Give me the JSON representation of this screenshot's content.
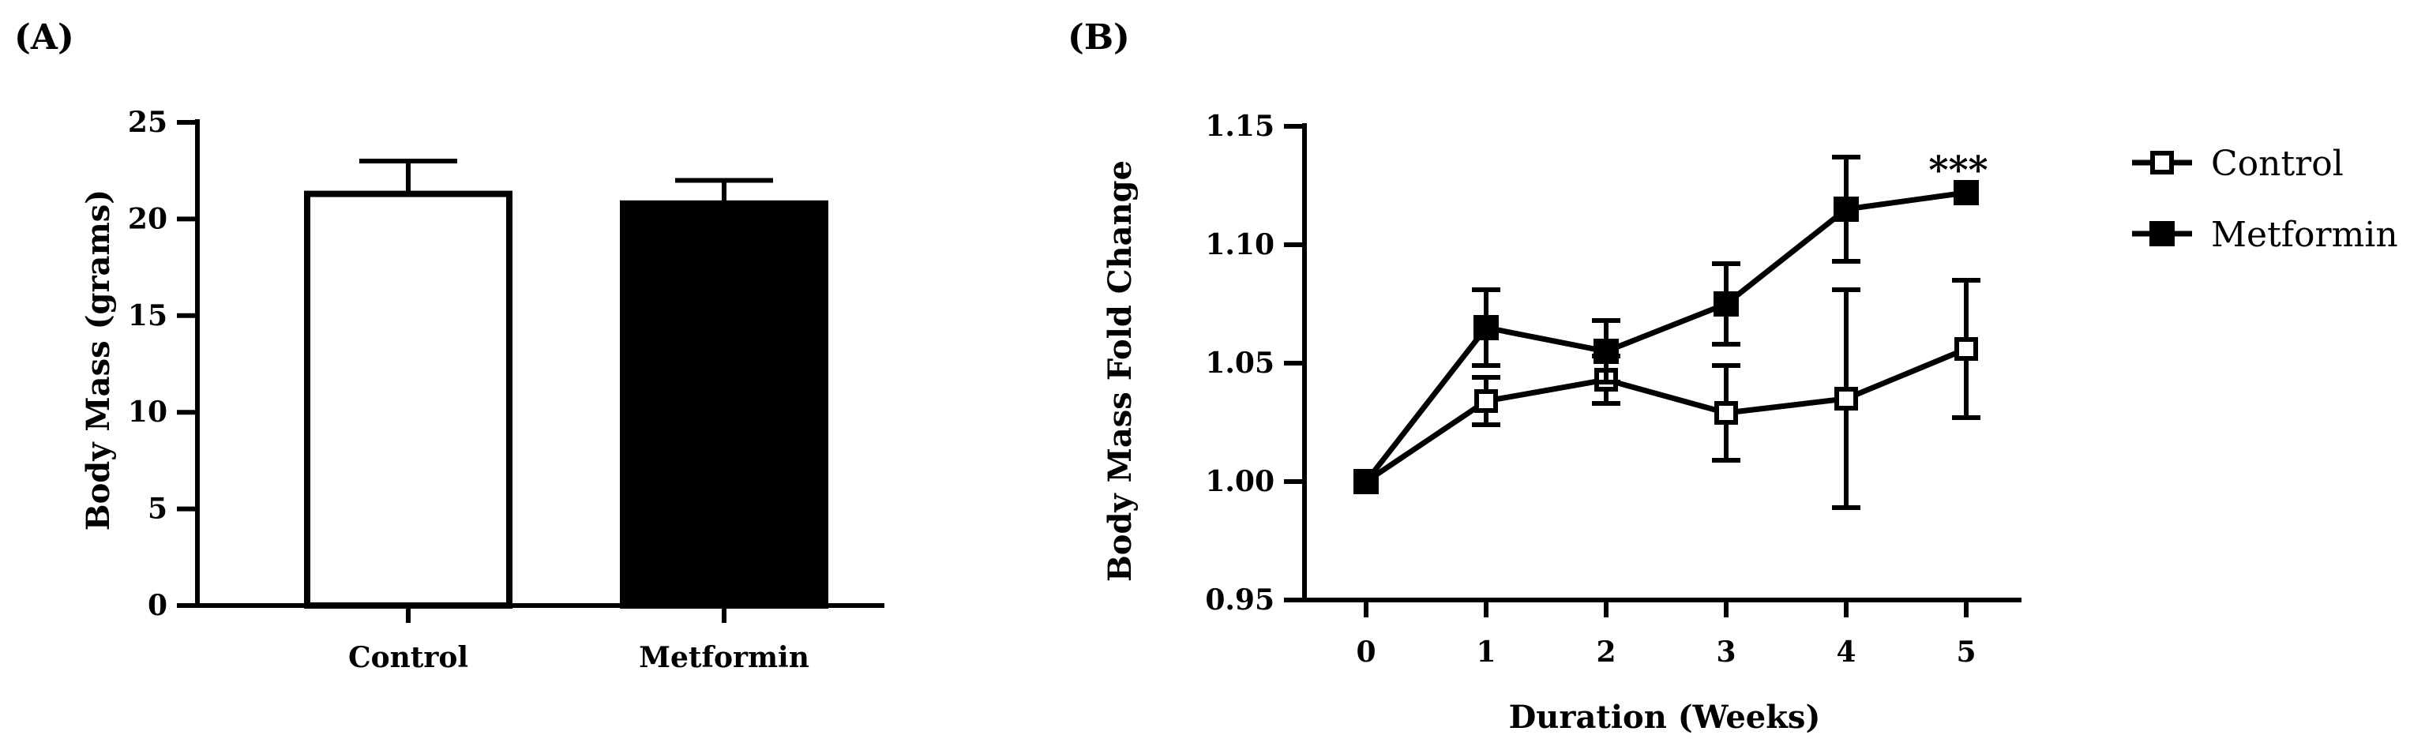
{
  "chart_data": [
    {
      "panel": "(A)",
      "type": "bar",
      "categories": [
        "Control",
        "Metformin"
      ],
      "values": [
        21.3,
        20.8
      ],
      "errors": [
        1.7,
        1.2
      ],
      "fills": [
        "#ffffff",
        "#000000"
      ],
      "ylabel": "Body Mass (grams)",
      "xlabel": "",
      "ylim": [
        0,
        25
      ],
      "yticks": [
        "0",
        "5",
        "10",
        "15",
        "20",
        "25"
      ],
      "yticks_values": [
        0,
        5,
        10,
        15,
        20,
        25
      ]
    },
    {
      "panel": "(B)",
      "type": "line",
      "x": [
        0,
        1,
        2,
        3,
        4,
        5
      ],
      "xticks": [
        "0",
        "1",
        "2",
        "3",
        "4",
        "5"
      ],
      "series": [
        {
          "name": "Control",
          "marker": "open-square",
          "values": [
            1.0,
            1.034,
            1.043,
            1.029,
            1.035,
            1.056
          ],
          "errors": [
            0,
            0.01,
            0.01,
            0.02,
            0.046,
            0.029
          ]
        },
        {
          "name": "Metformin",
          "marker": "filled-square",
          "values": [
            1.0,
            1.065,
            1.055,
            1.075,
            1.115,
            1.122
          ],
          "errors": [
            0,
            0.016,
            0.013,
            0.017,
            0.022,
            0.0
          ]
        }
      ],
      "xlabel": "Duration (Weeks)",
      "ylabel": "Body  Mass Fold Change",
      "ylim": [
        0.95,
        1.15
      ],
      "yticks": [
        "0.95",
        "1.00",
        "1.05",
        "1.10",
        "1.15"
      ],
      "yticks_values": [
        0.95,
        1.0,
        1.05,
        1.1,
        1.15
      ],
      "annotations": [
        {
          "x": 5,
          "text": "***"
        }
      ],
      "legend_position": "top-right"
    }
  ]
}
